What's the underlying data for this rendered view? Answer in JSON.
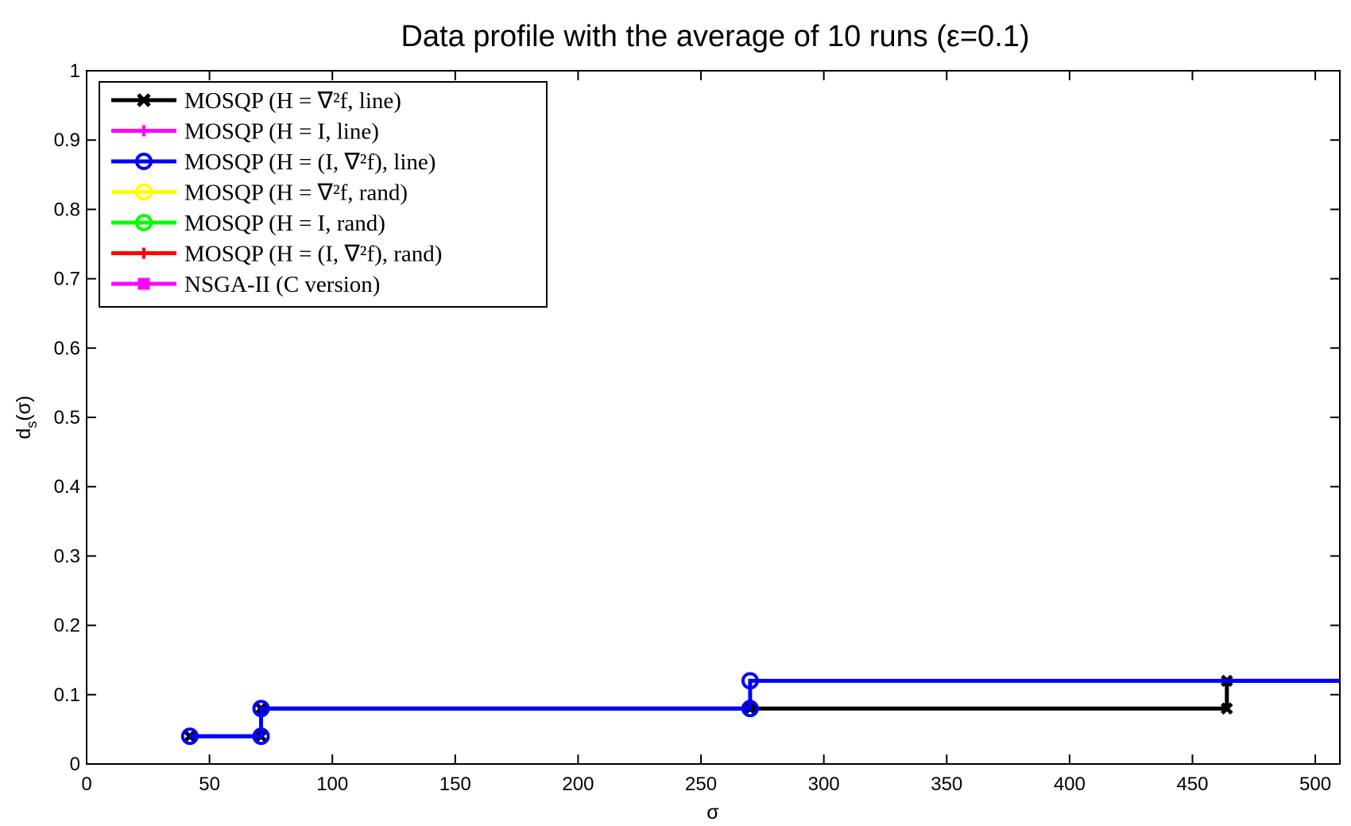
{
  "chart_data": {
    "type": "line",
    "title": "Data profile with the average of 10 runs (ε=0.1)",
    "xlabel": "σ",
    "ylabel": "d_s(σ)",
    "xlim": [
      0,
      510
    ],
    "ylim": [
      0,
      1
    ],
    "x_ticks": [
      0,
      50,
      100,
      150,
      200,
      250,
      300,
      350,
      400,
      450,
      500
    ],
    "y_ticks": [
      0,
      0.1,
      0.2,
      0.3,
      0.4,
      0.5,
      0.6,
      0.7,
      0.8,
      0.9,
      1
    ],
    "y_tick_labels": [
      "0",
      "0.1",
      "0.2",
      "0.3",
      "0.4",
      "0.5",
      "0.6",
      "0.7",
      "0.8",
      "0.9",
      "1"
    ],
    "grid": false,
    "legend_position": "top-left",
    "series": [
      {
        "name": "MOSQP (H = ∇²f, line)",
        "color": "#000000",
        "marker": "x",
        "x": [
          42,
          71,
          71,
          270,
          270,
          464,
          464,
          510
        ],
        "y": [
          0.04,
          0.04,
          0.08,
          0.08,
          0.08,
          0.08,
          0.12,
          0.12
        ]
      },
      {
        "name": "MOSQP (H = I, line)",
        "color": "#ff00ff",
        "marker": "+",
        "x": [],
        "y": []
      },
      {
        "name": "MOSQP (H = (I, ∇²f), line)",
        "color": "#0000ff",
        "marker": "o",
        "x": [
          42,
          71,
          71,
          270,
          270,
          510
        ],
        "y": [
          0.04,
          0.04,
          0.08,
          0.08,
          0.12,
          0.12
        ]
      },
      {
        "name": "MOSQP (H = ∇²f, rand)",
        "color": "#ffff00",
        "marker": "o",
        "x": [],
        "y": []
      },
      {
        "name": "MOSQP (H = I, rand)",
        "color": "#00ff00",
        "marker": "o",
        "x": [],
        "y": []
      },
      {
        "name": "MOSQP (H = (I, ∇²f), rand)",
        "color": "#ff0000",
        "marker": "+",
        "x": [],
        "y": []
      },
      {
        "name": "NSGA-II (C version)",
        "color": "#ff00ff",
        "marker": "s",
        "x": [],
        "y": []
      }
    ]
  }
}
